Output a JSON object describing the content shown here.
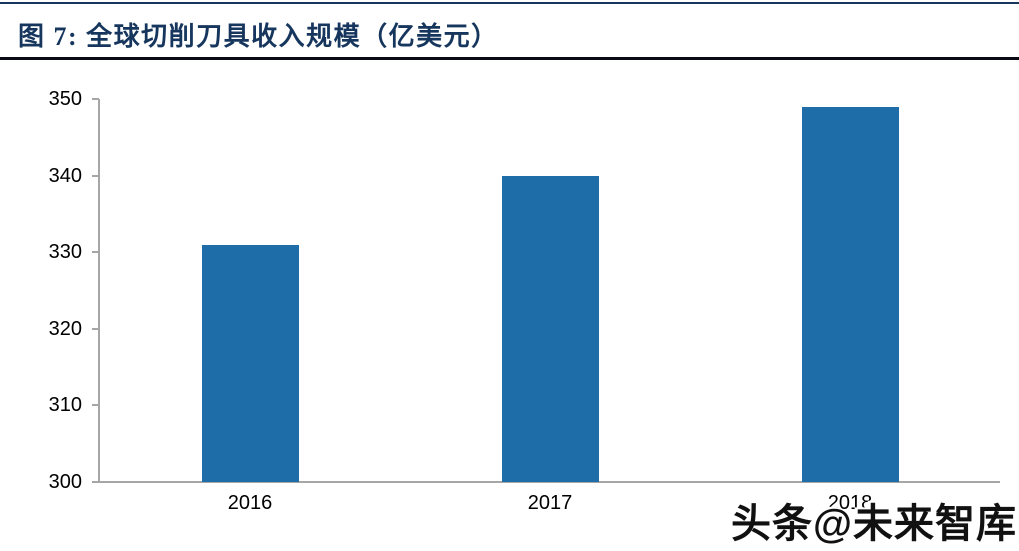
{
  "header": {
    "title": "图 7: 全球切削刀具收入规模（亿美元）"
  },
  "chart_data": {
    "type": "bar",
    "title": "全球切削刀具收入规模（亿美元）",
    "categories": [
      "2016",
      "2017",
      "2018"
    ],
    "values": [
      331,
      340,
      349
    ],
    "xlabel": "",
    "ylabel": "",
    "ylim": [
      300,
      350
    ],
    "yticks": [
      300,
      310,
      320,
      330,
      340,
      350
    ],
    "grid": false,
    "legend": false,
    "bar_color": "#1E6CA8",
    "axis_color": "#A6A6A6",
    "tick_label_color": "#000000"
  },
  "watermark": {
    "text": "头条@未来智库"
  },
  "colors": {
    "title": "#17365D",
    "top_rule": "#17365D",
    "header_rule": "#0a0a14"
  }
}
